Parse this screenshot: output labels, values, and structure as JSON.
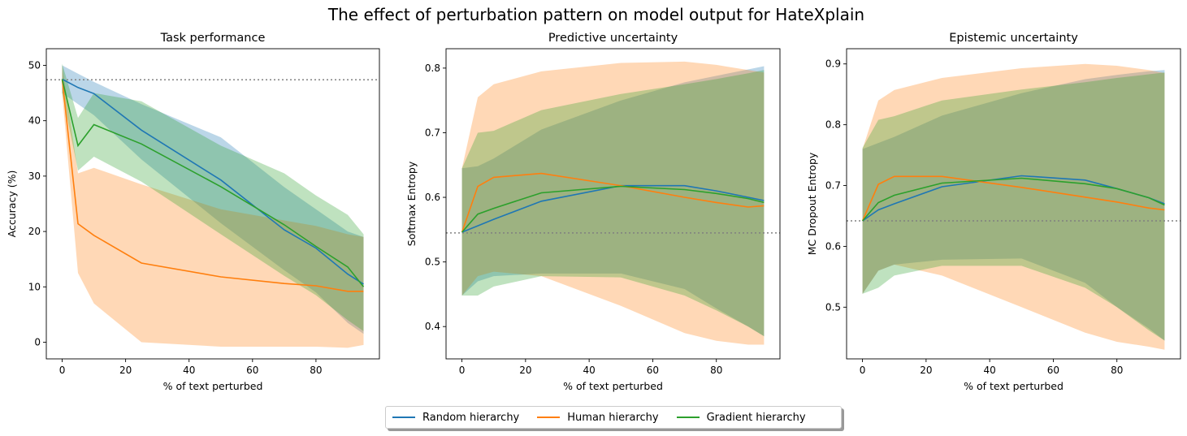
{
  "figure_title": "The effect of perturbation pattern on model output for HateXplain",
  "legend": {
    "placement": "bottom-center",
    "entries": [
      {
        "label": "Random hierarchy",
        "color": "#1f77b4"
      },
      {
        "label": "Human hierarchy",
        "color": "#ff7f0e"
      },
      {
        "label": "Gradient hierarchy",
        "color": "#2ca02c"
      }
    ]
  },
  "chart_data": [
    {
      "type": "line",
      "title": "Task performance",
      "xlabel": "% of text perturbed",
      "ylabel": "Accuracy (%)",
      "xlim": [
        -5,
        100
      ],
      "ylim": [
        -3,
        53
      ],
      "xticks": [
        0,
        20,
        40,
        60,
        80
      ],
      "yticks": [
        0,
        10,
        20,
        30,
        40,
        50
      ],
      "tick_decimals": 0,
      "baseline": 47.4,
      "grid": false,
      "x": [
        0,
        5,
        10,
        25,
        50,
        70,
        80,
        90,
        95
      ],
      "series": [
        {
          "name": "Random hierarchy",
          "color": "#1f77b4",
          "values": [
            47.5,
            46.0,
            44.9,
            38.3,
            29.3,
            20.3,
            17.0,
            12.3,
            10.5
          ],
          "upper": [
            50.0,
            48.5,
            47.0,
            43.0,
            37.0,
            28.0,
            24.0,
            20.0,
            19.0
          ],
          "lower": [
            45.0,
            43.0,
            41.0,
            33.0,
            21.5,
            13.0,
            9.0,
            3.5,
            1.5
          ]
        },
        {
          "name": "Human hierarchy",
          "color": "#ff7f0e",
          "values": [
            47.5,
            21.4,
            19.3,
            14.3,
            11.8,
            10.6,
            10.2,
            9.2,
            9.2
          ],
          "upper": [
            50.0,
            30.5,
            31.5,
            28.5,
            24.0,
            22.0,
            21.0,
            19.5,
            19.0
          ],
          "lower": [
            45.0,
            12.5,
            7.0,
            0.0,
            -0.8,
            -0.8,
            -0.8,
            -1.0,
            -0.5
          ]
        },
        {
          "name": "Gradient hierarchy",
          "color": "#2ca02c",
          "values": [
            47.5,
            35.5,
            39.3,
            35.8,
            28.1,
            21.2,
            17.3,
            13.6,
            10.0
          ],
          "upper": [
            50.3,
            40.5,
            45.0,
            43.5,
            35.5,
            30.5,
            26.5,
            23.0,
            19.5
          ],
          "lower": [
            45.0,
            31.0,
            33.5,
            29.0,
            19.5,
            12.0,
            8.5,
            4.0,
            2.0
          ]
        }
      ]
    },
    {
      "type": "line",
      "title": "Predictive uncertainty",
      "xlabel": "% of text perturbed",
      "ylabel": "Softmax Entropy",
      "xlim": [
        -5,
        100
      ],
      "ylim": [
        0.35,
        0.83
      ],
      "xticks": [
        0,
        20,
        40,
        60,
        80
      ],
      "yticks": [
        0.4,
        0.5,
        0.6,
        0.7,
        0.8
      ],
      "tick_decimals": 1,
      "baseline": 0.545,
      "grid": false,
      "x": [
        0,
        5,
        10,
        25,
        50,
        70,
        80,
        90,
        95
      ],
      "series": [
        {
          "name": "Random hierarchy",
          "color": "#1f77b4",
          "values": [
            0.546,
            0.556,
            0.566,
            0.594,
            0.618,
            0.618,
            0.61,
            0.6,
            0.595
          ],
          "upper": [
            0.645,
            0.648,
            0.66,
            0.705,
            0.75,
            0.778,
            0.788,
            0.798,
            0.803
          ],
          "lower": [
            0.448,
            0.47,
            0.478,
            0.482,
            0.482,
            0.458,
            0.428,
            0.4,
            0.385
          ]
        },
        {
          "name": "Human hierarchy",
          "color": "#ff7f0e",
          "values": [
            0.546,
            0.617,
            0.631,
            0.637,
            0.618,
            0.6,
            0.592,
            0.585,
            0.587
          ],
          "upper": [
            0.645,
            0.755,
            0.775,
            0.795,
            0.808,
            0.81,
            0.805,
            0.797,
            0.793
          ],
          "lower": [
            0.448,
            0.478,
            0.485,
            0.478,
            0.432,
            0.39,
            0.378,
            0.372,
            0.372
          ]
        },
        {
          "name": "Gradient hierarchy",
          "color": "#2ca02c",
          "values": [
            0.546,
            0.574,
            0.583,
            0.607,
            0.617,
            0.612,
            0.606,
            0.598,
            0.592
          ],
          "upper": [
            0.645,
            0.7,
            0.703,
            0.735,
            0.76,
            0.775,
            0.783,
            0.792,
            0.797
          ],
          "lower": [
            0.448,
            0.448,
            0.462,
            0.478,
            0.476,
            0.448,
            0.425,
            0.4,
            0.385
          ]
        }
      ]
    },
    {
      "type": "line",
      "title": "Epistemic uncertainty",
      "xlabel": "% of text perturbed",
      "ylabel": "MC Dropout Entropy",
      "xlim": [
        -5,
        100
      ],
      "ylim": [
        0.415,
        0.925
      ],
      "xticks": [
        0,
        20,
        40,
        60,
        80
      ],
      "yticks": [
        0.5,
        0.6,
        0.7,
        0.8,
        0.9
      ],
      "tick_decimals": 1,
      "baseline": 0.642,
      "grid": false,
      "x": [
        0,
        5,
        10,
        25,
        50,
        70,
        80,
        90,
        95
      ],
      "series": [
        {
          "name": "Random hierarchy",
          "color": "#1f77b4",
          "values": [
            0.642,
            0.66,
            0.67,
            0.698,
            0.716,
            0.709,
            0.695,
            0.68,
            0.67
          ],
          "upper": [
            0.76,
            0.77,
            0.78,
            0.815,
            0.852,
            0.875,
            0.882,
            0.888,
            0.89
          ],
          "lower": [
            0.522,
            0.56,
            0.57,
            0.578,
            0.58,
            0.54,
            0.5,
            0.465,
            0.445
          ]
        },
        {
          "name": "Human hierarchy",
          "color": "#ff7f0e",
          "values": [
            0.642,
            0.702,
            0.715,
            0.715,
            0.697,
            0.681,
            0.673,
            0.663,
            0.66
          ],
          "upper": [
            0.76,
            0.84,
            0.857,
            0.877,
            0.893,
            0.9,
            0.897,
            0.89,
            0.885
          ],
          "lower": [
            0.522,
            0.56,
            0.57,
            0.552,
            0.5,
            0.458,
            0.443,
            0.435,
            0.43
          ]
        },
        {
          "name": "Gradient hierarchy",
          "color": "#2ca02c",
          "values": [
            0.642,
            0.672,
            0.684,
            0.704,
            0.712,
            0.703,
            0.695,
            0.68,
            0.668
          ],
          "upper": [
            0.762,
            0.808,
            0.814,
            0.84,
            0.858,
            0.87,
            0.877,
            0.883,
            0.886
          ],
          "lower": [
            0.522,
            0.532,
            0.552,
            0.568,
            0.568,
            0.532,
            0.5,
            0.462,
            0.445
          ]
        }
      ]
    }
  ]
}
